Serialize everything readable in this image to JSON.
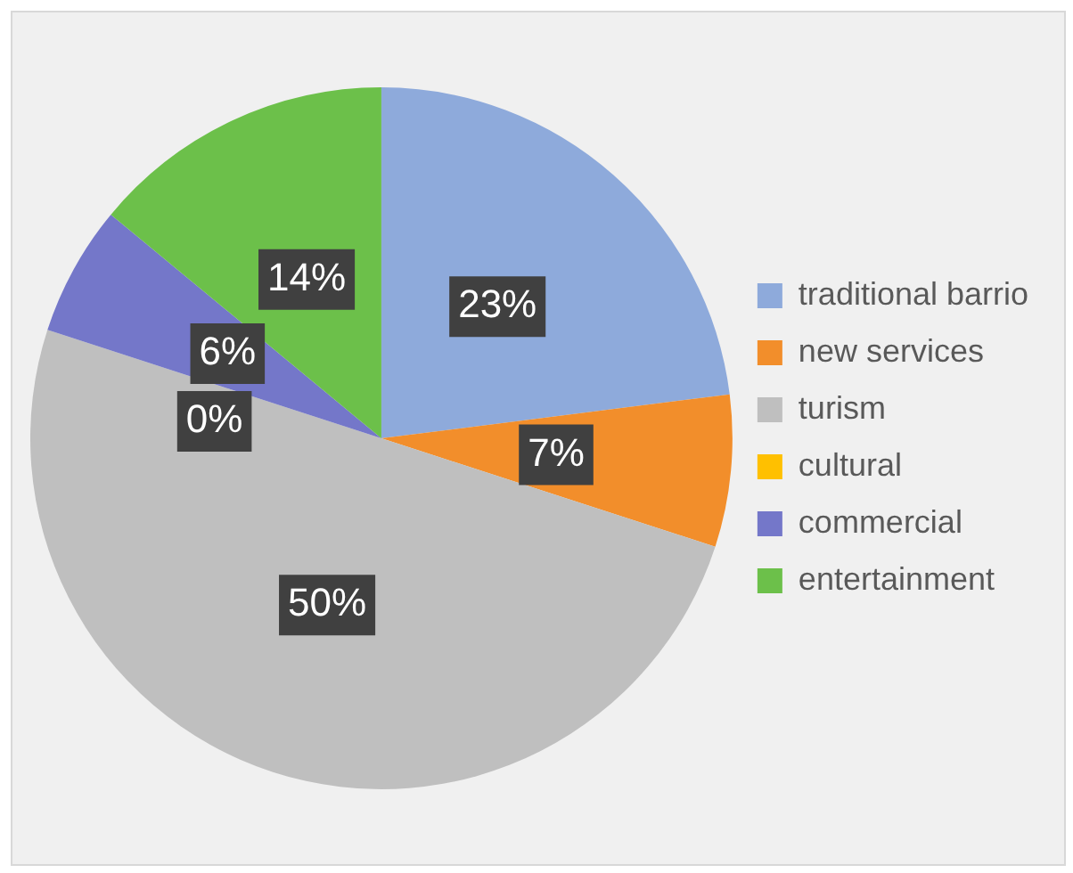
{
  "chart_data": {
    "type": "pie",
    "categories": [
      "traditional barrio",
      "new services",
      "turism",
      "cultural",
      "commercial",
      "entertainment"
    ],
    "values": [
      23,
      7,
      50,
      0,
      6,
      14
    ],
    "colors": [
      "#8eaadb",
      "#f28e2b",
      "#bfbfbf",
      "#ffc000",
      "#7477c9",
      "#6cc04a"
    ],
    "value_labels": [
      "23%",
      "7%",
      "50%",
      "0%",
      "6%",
      "14%"
    ],
    "legend": "right"
  }
}
